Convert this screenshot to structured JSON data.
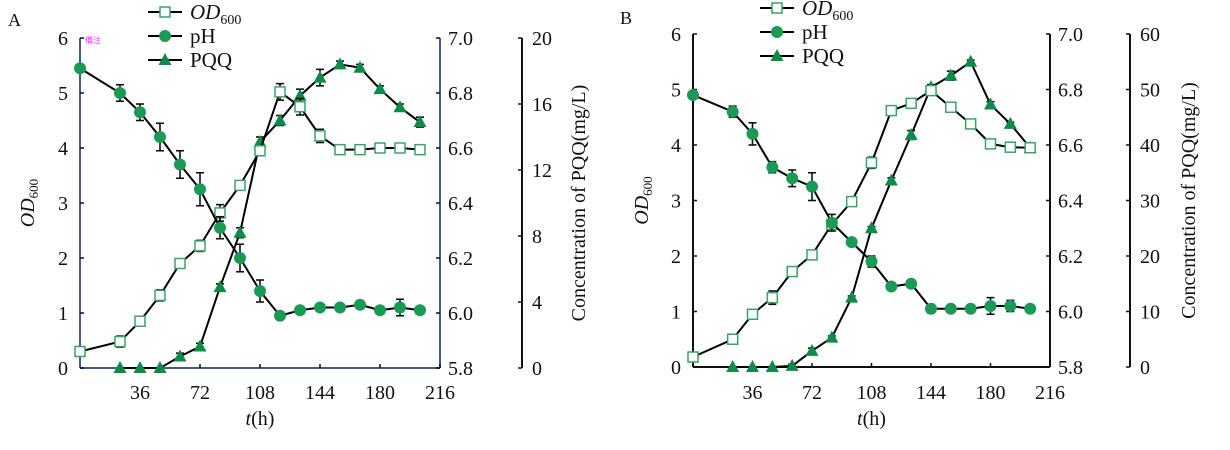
{
  "chart_data": [
    {
      "panel": "A",
      "type": "line",
      "title": "",
      "xlabel": "t(h)",
      "ylabel_left": "OD600",
      "ylabel_right2": "Concentration of PQQ(mg/L)",
      "x_ticks": [
        "36",
        "72",
        "108",
        "144",
        "180",
        "216"
      ],
      "x_tick_values": [
        36,
        72,
        108,
        144,
        180,
        216
      ],
      "xlim": [
        0,
        216
      ],
      "y_left": {
        "label": "OD600",
        "lim": [
          0,
          6
        ],
        "ticks": [
          "0",
          "1",
          "2",
          "3",
          "4",
          "5",
          "6"
        ],
        "tick_values": [
          0,
          1,
          2,
          3,
          4,
          5,
          6
        ]
      },
      "y_right1": {
        "label": "pH",
        "lim": [
          5.8,
          7.0
        ],
        "ticks": [
          "5.8",
          "6.0",
          "6.2",
          "6.4",
          "6.6",
          "6.8",
          "7.0"
        ],
        "tick_values": [
          5.8,
          6.0,
          6.2,
          6.4,
          6.6,
          6.8,
          7.0
        ]
      },
      "y_right2": {
        "label": "Concentration of PQQ(mg/L)",
        "lim": [
          0,
          20
        ],
        "ticks": [
          "0",
          "4",
          "8",
          "12",
          "16",
          "20"
        ],
        "tick_values": [
          0,
          4,
          8,
          12,
          16,
          20
        ]
      },
      "legend": {
        "position": "top-center",
        "entries": [
          "OD600",
          "pH",
          "PQQ"
        ]
      },
      "mark_text": "備注",
      "series": [
        {
          "name": "OD600",
          "axis": "left",
          "marker": "square-open",
          "x": [
            0,
            24,
            36,
            48,
            60,
            72,
            84,
            96,
            108,
            120,
            132,
            144,
            156,
            168,
            180,
            192,
            204
          ],
          "values": [
            0.3,
            0.48,
            0.85,
            1.32,
            1.9,
            2.22,
            2.82,
            3.32,
            3.95,
            5.02,
            4.75,
            4.22,
            3.97,
            3.97,
            4.0,
            4.0,
            3.97
          ],
          "err": [
            0,
            0.1,
            0.05,
            0.1,
            0.03,
            0.1,
            0.15,
            0.05,
            0.03,
            0.15,
            0.15,
            0.12,
            0.05,
            0.03,
            0.04,
            0.04,
            0.03
          ]
        },
        {
          "name": "pH",
          "axis": "right1",
          "marker": "circle",
          "x": [
            0,
            24,
            36,
            48,
            60,
            72,
            84,
            96,
            108,
            120,
            132,
            144,
            156,
            168,
            180,
            192,
            204
          ],
          "values": [
            6.89,
            6.8,
            6.73,
            6.64,
            6.54,
            6.45,
            6.31,
            6.2,
            6.08,
            5.99,
            6.01,
            6.02,
            6.02,
            6.03,
            6.01,
            6.02,
            6.01
          ],
          "err": [
            0,
            0.03,
            0.03,
            0.05,
            0.05,
            0.06,
            0.04,
            0.05,
            0.04,
            0.01,
            0.01,
            0.01,
            0.01,
            0.01,
            0.01,
            0.03,
            0.005
          ]
        },
        {
          "name": "PQQ",
          "axis": "right2",
          "marker": "triangle",
          "x": [
            24,
            36,
            48,
            60,
            72,
            84,
            96,
            108,
            120,
            132,
            144,
            156,
            168,
            180,
            192,
            204
          ],
          "values": [
            0,
            0,
            0,
            0.7,
            1.3,
            4.9,
            8.2,
            13.7,
            15.0,
            16.5,
            17.6,
            18.4,
            18.2,
            16.9,
            15.8,
            14.9
          ],
          "err": [
            0,
            0,
            0,
            0.2,
            0.2,
            0.2,
            0.3,
            0.3,
            0.3,
            0.4,
            0.5,
            0.2,
            0.2,
            0.2,
            0.2,
            0.3
          ]
        }
      ]
    },
    {
      "panel": "B",
      "type": "line",
      "title": "",
      "xlabel": "t(h)",
      "ylabel_left": "OD600",
      "ylabel_right2": "Concentration of PQQ(mg/L)",
      "x_ticks": [
        "36",
        "72",
        "108",
        "144",
        "180",
        "216"
      ],
      "x_tick_values": [
        36,
        72,
        108,
        144,
        180,
        216
      ],
      "xlim": [
        0,
        216
      ],
      "y_left": {
        "label": "OD600",
        "lim": [
          0,
          6
        ],
        "ticks": [
          "0",
          "1",
          "2",
          "3",
          "4",
          "5",
          "6"
        ],
        "tick_values": [
          0,
          1,
          2,
          3,
          4,
          5,
          6
        ]
      },
      "y_right1": {
        "label": "pH",
        "lim": [
          5.8,
          7.0
        ],
        "ticks": [
          "5.8",
          "6.0",
          "6.2",
          "6.4",
          "6.6",
          "6.8",
          "7.0"
        ],
        "tick_values": [
          5.8,
          6.0,
          6.2,
          6.4,
          6.6,
          6.8,
          7.0
        ]
      },
      "y_right2": {
        "label": "Concentration of PQQ(mg/L)",
        "lim": [
          0,
          60
        ],
        "ticks": [
          "0",
          "10",
          "20",
          "30",
          "40",
          "50",
          "60"
        ],
        "tick_values": [
          0,
          10,
          20,
          30,
          40,
          50,
          60
        ]
      },
      "legend": {
        "position": "top-center",
        "entries": [
          "OD600",
          "pH",
          "PQQ"
        ]
      },
      "series": [
        {
          "name": "OD600",
          "axis": "left",
          "marker": "square-open",
          "x": [
            0,
            24,
            36,
            48,
            60,
            72,
            84,
            96,
            108,
            120,
            132,
            144,
            156,
            168,
            180,
            192,
            204
          ],
          "values": [
            0.18,
            0.5,
            0.95,
            1.25,
            1.72,
            2.02,
            2.57,
            2.98,
            3.68,
            4.62,
            4.75,
            4.98,
            4.68,
            4.38,
            4.02,
            3.96,
            3.95
          ],
          "err": [
            0,
            0.03,
            0.03,
            0.12,
            0.08,
            0.03,
            0.05,
            0.03,
            0.1,
            0.03,
            0.06,
            0.06,
            0.02,
            0.06,
            0.04,
            0.03,
            0.04
          ]
        },
        {
          "name": "pH",
          "axis": "right1",
          "marker": "circle",
          "x": [
            0,
            24,
            36,
            48,
            60,
            72,
            84,
            96,
            108,
            120,
            132,
            144,
            156,
            168,
            180,
            192,
            204
          ],
          "values": [
            6.78,
            6.72,
            6.64,
            6.52,
            6.48,
            6.45,
            6.32,
            6.25,
            6.18,
            6.09,
            6.1,
            6.01,
            6.01,
            6.01,
            6.02,
            6.02,
            6.01
          ],
          "err": [
            0.01,
            0.02,
            0.04,
            0.02,
            0.03,
            0.05,
            0.03,
            0.005,
            0.02,
            0.005,
            0.005,
            0.015,
            0.005,
            0.01,
            0.03,
            0.02,
            0.005
          ]
        },
        {
          "name": "PQQ",
          "axis": "right2",
          "marker": "triangle",
          "x": [
            24,
            36,
            48,
            60,
            72,
            84,
            96,
            108,
            120,
            132,
            144,
            156,
            168,
            180,
            192,
            204
          ],
          "values": [
            0,
            0,
            0,
            0.2,
            2.9,
            5.3,
            12.5,
            25.0,
            33.6,
            41.8,
            50.4,
            52.5,
            55.0,
            47.3,
            43.8,
            39.5
          ],
          "err": [
            0,
            0,
            0,
            0.3,
            0.5,
            0.3,
            0.3,
            0.3,
            0.5,
            0.8,
            0.5,
            0.8,
            0.3,
            0.5,
            0.3,
            0.8
          ]
        }
      ]
    }
  ]
}
